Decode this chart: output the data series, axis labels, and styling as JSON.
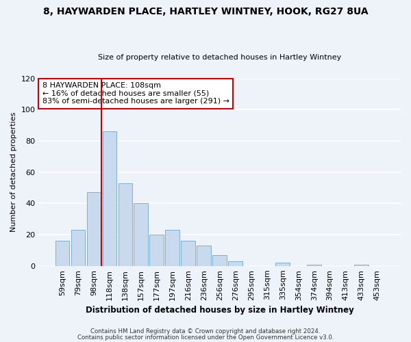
{
  "title_line1": "8, HAYWARDEN PLACE, HARTLEY WINTNEY, HOOK, RG27 8UA",
  "title_line2": "Size of property relative to detached houses in Hartley Wintney",
  "xlabel": "Distribution of detached houses by size in Hartley Wintney",
  "ylabel": "Number of detached properties",
  "bar_labels": [
    "59sqm",
    "79sqm",
    "98sqm",
    "118sqm",
    "138sqm",
    "157sqm",
    "177sqm",
    "197sqm",
    "216sqm",
    "236sqm",
    "256sqm",
    "276sqm",
    "295sqm",
    "315sqm",
    "335sqm",
    "354sqm",
    "374sqm",
    "394sqm",
    "413sqm",
    "433sqm",
    "453sqm"
  ],
  "bar_values": [
    16,
    23,
    47,
    86,
    53,
    40,
    20,
    23,
    16,
    13,
    7,
    3,
    0,
    0,
    2,
    0,
    1,
    0,
    0,
    1,
    0
  ],
  "bar_color": "#c9d9ee",
  "bar_edge_color": "#7aafd4",
  "annotation_text": "8 HAYWARDEN PLACE: 108sqm\n← 16% of detached houses are smaller (55)\n83% of semi-detached houses are larger (291) →",
  "annotation_box_color": "#ffffff",
  "annotation_box_edge": "#cc0000",
  "vline_color": "#cc0000",
  "vline_x": 2.5,
  "ylim": [
    0,
    120
  ],
  "yticks": [
    0,
    20,
    40,
    60,
    80,
    100,
    120
  ],
  "footnote1": "Contains HM Land Registry data © Crown copyright and database right 2024.",
  "footnote2": "Contains public sector information licensed under the Open Government Licence v3.0.",
  "background_color": "#eef2f9",
  "grid_color": "#ffffff"
}
